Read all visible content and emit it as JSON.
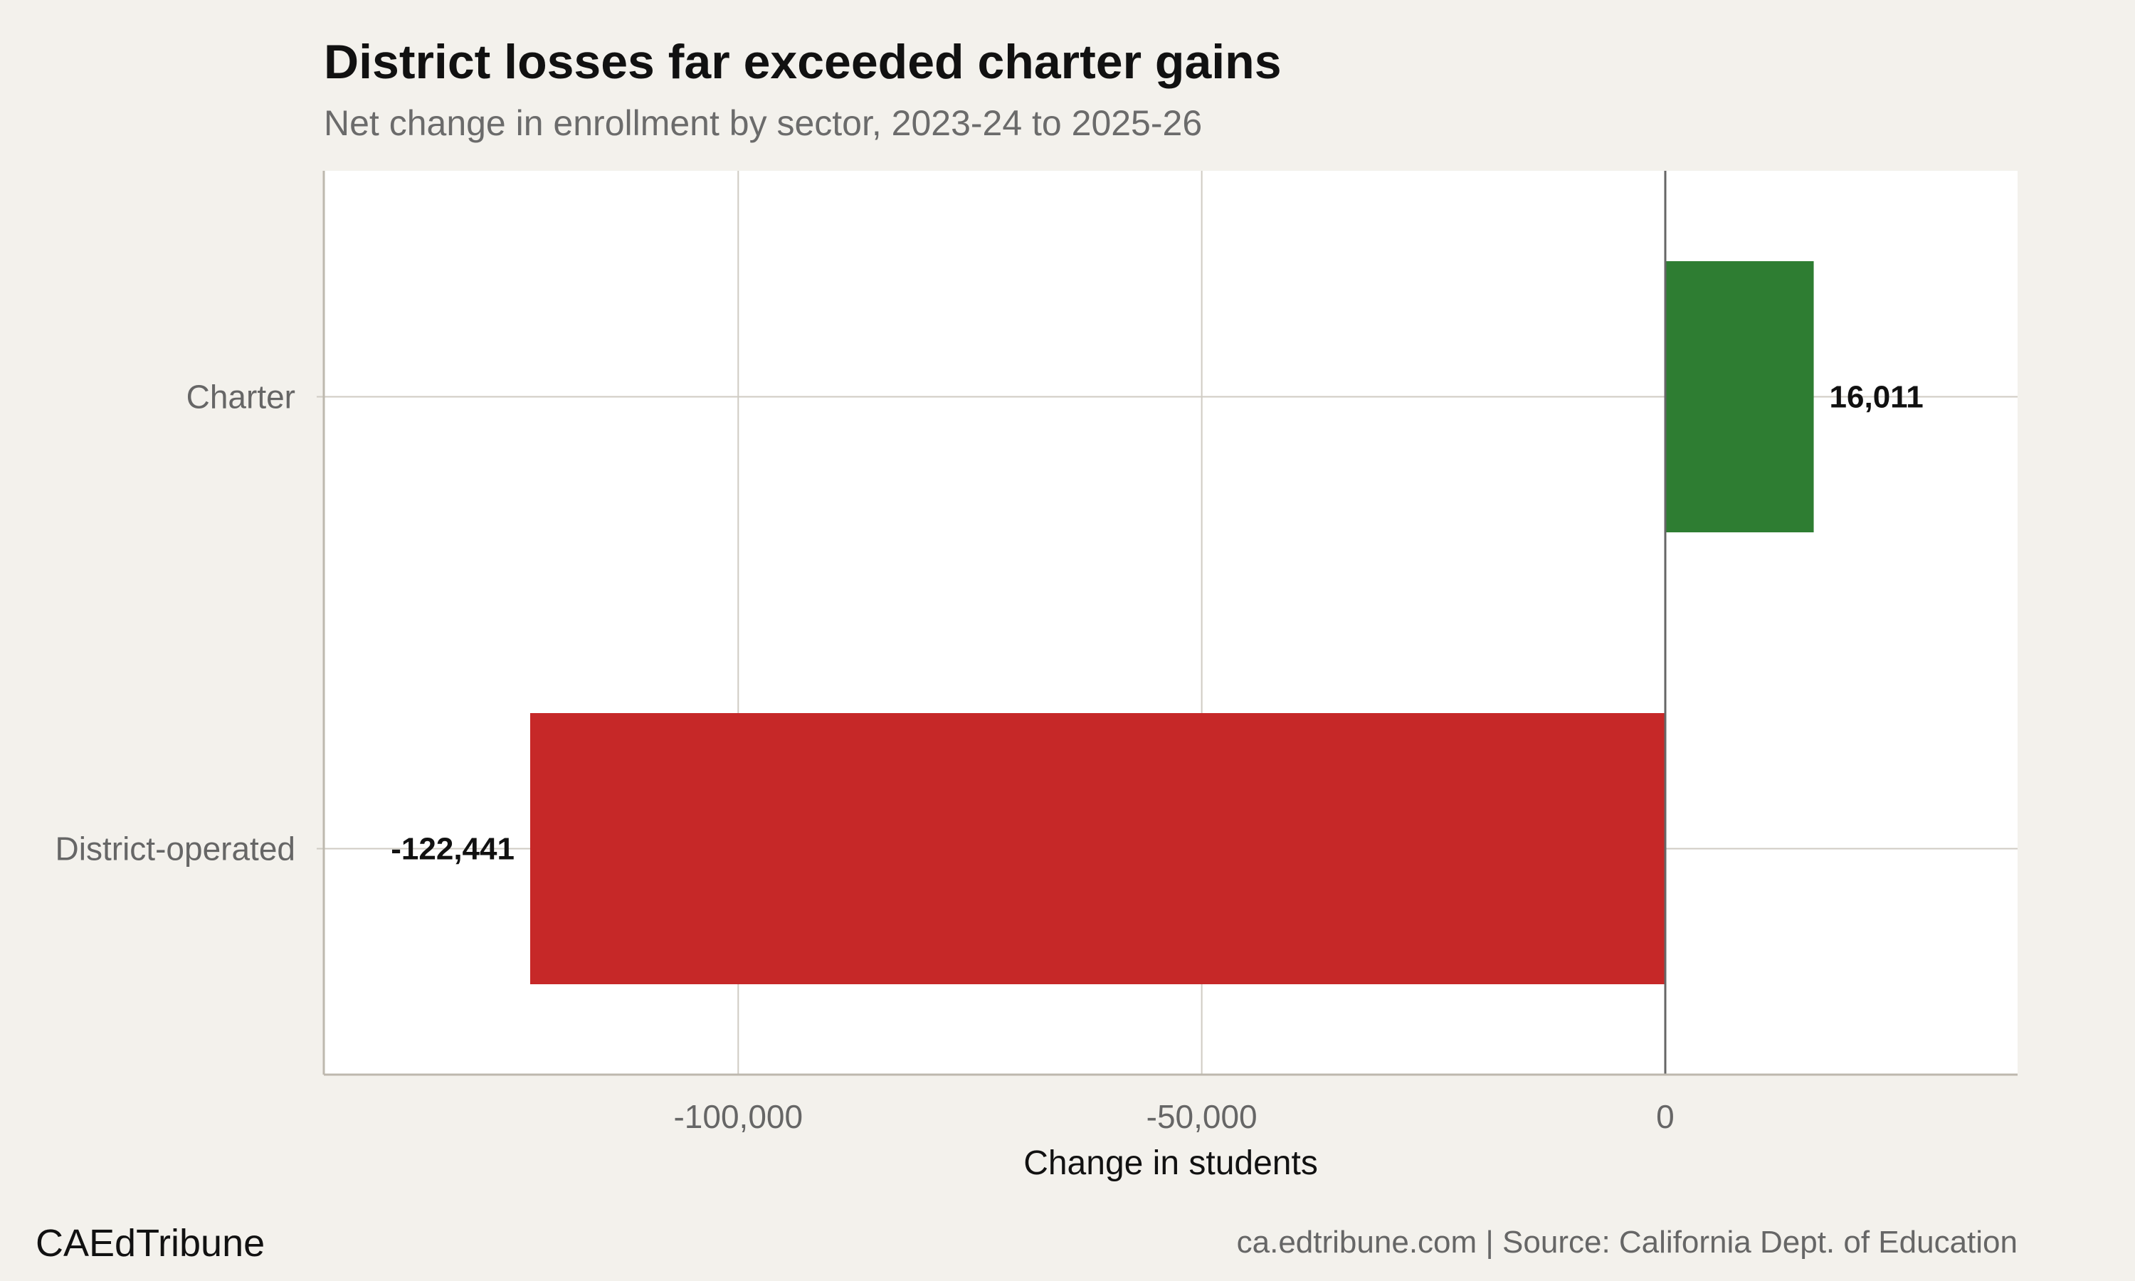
{
  "header": {
    "title": "District losses far exceeded charter gains",
    "subtitle": "Net change in enrollment by sector, 2023-24 to 2025-26"
  },
  "footer": {
    "brand": "CAEdTribune",
    "source": "ca.edtribune.com | Source: California Dept. of Education"
  },
  "colors": {
    "background": "#f3f1ec",
    "panel": "#ffffff",
    "grid": "#cfcbc3",
    "zero_line": "#666666",
    "positive": "#2e7d32",
    "negative": "#c62828"
  },
  "chart_data": {
    "type": "bar",
    "orientation": "horizontal",
    "title": "District losses far exceeded charter gains",
    "subtitle": "Net change in enrollment by sector, 2023-24 to 2025-26",
    "xlabel": "Change in students",
    "ylabel": "",
    "categories": [
      "Charter",
      "District-operated"
    ],
    "values": [
      16011,
      -122441
    ],
    "value_labels": [
      "16,011",
      "-122,441"
    ],
    "bar_colors": [
      "#2e7d32",
      "#c62828"
    ],
    "xlim": [
      -144700,
      38000
    ],
    "xticks": [
      -100000,
      -50000,
      0
    ],
    "xtick_labels": [
      "-100,000",
      "-50,000",
      "0"
    ],
    "grid": true,
    "legend": "none"
  }
}
